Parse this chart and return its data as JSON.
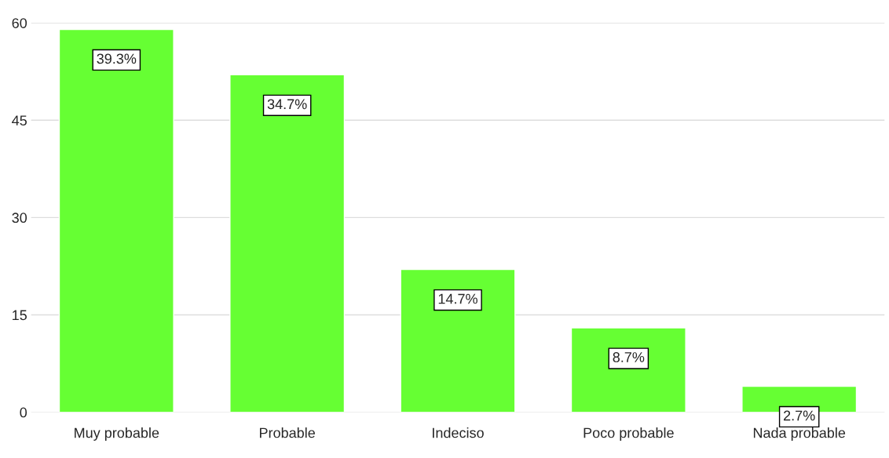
{
  "chart_data": {
    "type": "bar",
    "categories": [
      "Muy probable",
      "Probable",
      "Indeciso",
      "Poco probable",
      "Nada probable"
    ],
    "values": [
      59,
      52,
      22,
      13,
      4
    ],
    "annotations": [
      {
        "text": "39.3%",
        "x": "Muy probable",
        "y": 59
      },
      {
        "text": "34.7%",
        "x": "Probable",
        "y": 52
      },
      {
        "text": "14.7%",
        "x": "Indeciso",
        "y": 22
      },
      {
        "text": "8.7%",
        "x": "Poco probable",
        "y": 13
      },
      {
        "text": "2.7%",
        "x": "Nada probable",
        "y": 4
      }
    ],
    "color": "#66ff33",
    "ylim": [
      0,
      60
    ],
    "yticks": [
      0,
      15,
      30,
      45,
      60
    ],
    "grid": "y"
  }
}
